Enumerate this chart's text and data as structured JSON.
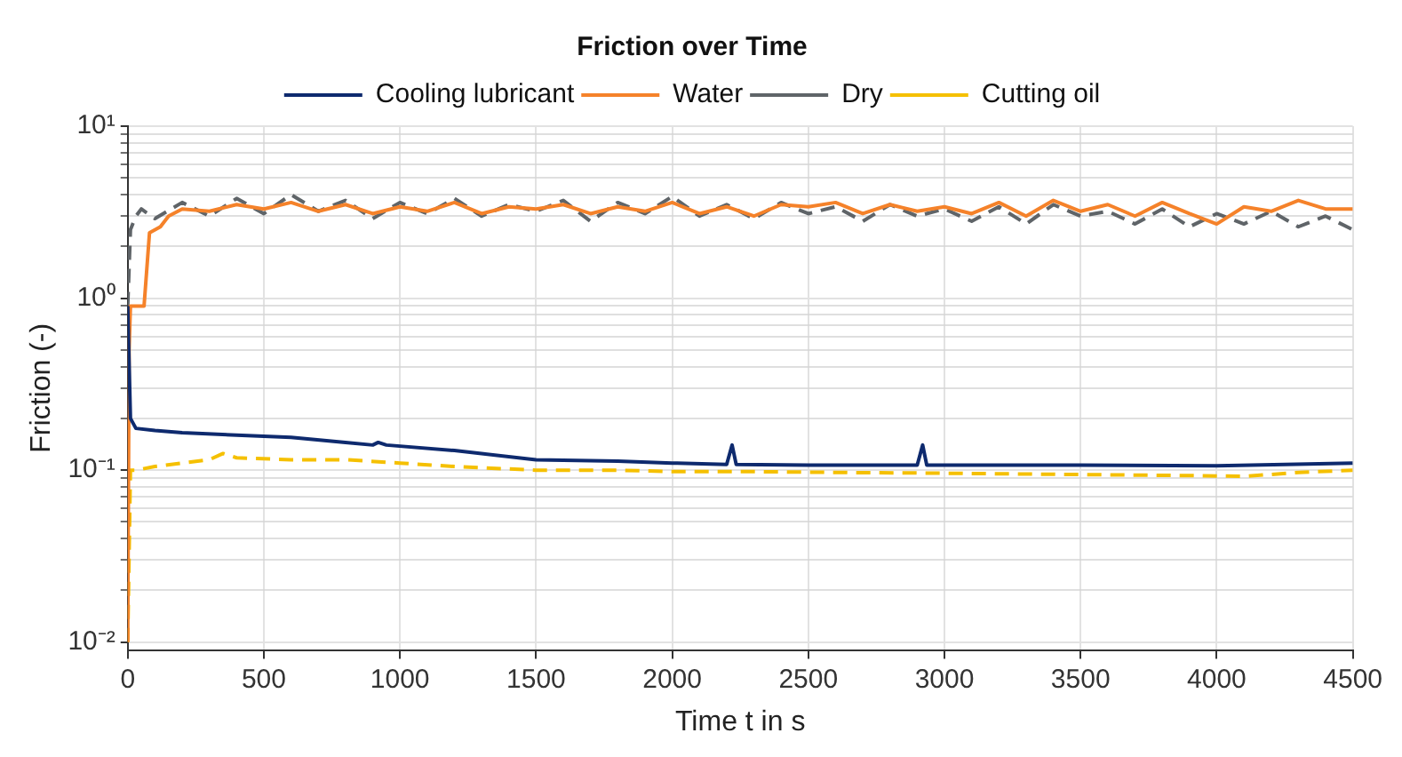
{
  "chart_data": {
    "type": "line",
    "title": "Friction over Time",
    "xlabel": "Time t in s",
    "ylabel": "Friction (-)",
    "xlim": [
      0,
      4500
    ],
    "xticks": [
      0,
      500,
      1000,
      1500,
      2000,
      2500,
      3000,
      3500,
      4000,
      4500
    ],
    "ylim": [
      0.009,
      10
    ],
    "log": "y",
    "yticks": [
      {
        "value": 0.01,
        "label": "10⁻²"
      },
      {
        "value": 0.02,
        "label": null
      },
      {
        "value": 0.03,
        "label": null
      },
      {
        "value": 0.04,
        "label": null
      },
      {
        "value": 0.05,
        "label": null
      },
      {
        "value": 0.06,
        "label": null
      },
      {
        "value": 0.07,
        "label": null
      },
      {
        "value": 0.08,
        "label": null
      },
      {
        "value": 0.09,
        "label": null
      },
      {
        "value": 0.1,
        "label": "10⁻¹"
      },
      {
        "value": 0.2,
        "label": null
      },
      {
        "value": 0.3,
        "label": null
      },
      {
        "value": 0.4,
        "label": null
      },
      {
        "value": 0.5,
        "label": null
      },
      {
        "value": 0.6,
        "label": null
      },
      {
        "value": 0.7,
        "label": null
      },
      {
        "value": 0.8,
        "label": null
      },
      {
        "value": 0.9,
        "label": null
      },
      {
        "value": 1,
        "label": "10⁰"
      },
      {
        "value": 2,
        "label": null
      },
      {
        "value": 3,
        "label": null
      },
      {
        "value": 4,
        "label": null
      },
      {
        "value": 5,
        "label": null
      },
      {
        "value": 6,
        "label": null
      },
      {
        "value": 7,
        "label": null
      },
      {
        "value": 8,
        "label": null
      },
      {
        "value": 9,
        "label": null
      },
      {
        "value": 10,
        "label": "10¹"
      }
    ],
    "grid": true,
    "legend": "top",
    "marker": "none",
    "series": [
      {
        "name": "Cooling lubricant",
        "color": "#0e2a6e",
        "line_style": "solid",
        "x": [
          0,
          10,
          30,
          100,
          200,
          400,
          600,
          800,
          900,
          920,
          950,
          1200,
          1500,
          1800,
          2000,
          2200,
          2220,
          2235,
          2500,
          2900,
          2920,
          2935,
          3500,
          4000,
          4500
        ],
        "values": [
          0.9,
          0.2,
          0.175,
          0.17,
          0.165,
          0.16,
          0.155,
          0.145,
          0.14,
          0.145,
          0.14,
          0.13,
          0.115,
          0.113,
          0.11,
          0.108,
          0.14,
          0.108,
          0.107,
          0.107,
          0.14,
          0.107,
          0.107,
          0.106,
          0.11
        ]
      },
      {
        "name": "Water",
        "color": "#f5822a",
        "line_style": "solid",
        "x": [
          0,
          5,
          10,
          60,
          80,
          120,
          150,
          200,
          300,
          400,
          500,
          600,
          700,
          800,
          900,
          1000,
          1100,
          1200,
          1300,
          1400,
          1500,
          1600,
          1700,
          1800,
          1900,
          2000,
          2100,
          2200,
          2300,
          2400,
          2500,
          2600,
          2700,
          2800,
          2900,
          3000,
          3100,
          3200,
          3300,
          3400,
          3500,
          3600,
          3700,
          3800,
          3900,
          4000,
          4100,
          4200,
          4300,
          4400,
          4500
        ],
        "values": [
          0.01,
          0.5,
          0.9,
          0.9,
          2.4,
          2.6,
          3.0,
          3.3,
          3.2,
          3.5,
          3.3,
          3.6,
          3.2,
          3.5,
          3.1,
          3.4,
          3.2,
          3.6,
          3.1,
          3.4,
          3.3,
          3.5,
          3.1,
          3.4,
          3.2,
          3.6,
          3.1,
          3.4,
          3.0,
          3.5,
          3.4,
          3.6,
          3.1,
          3.5,
          3.2,
          3.4,
          3.1,
          3.6,
          3.0,
          3.7,
          3.2,
          3.5,
          3.0,
          3.6,
          3.1,
          2.7,
          3.4,
          3.2,
          3.7,
          3.3,
          3.3
        ]
      },
      {
        "name": "Dry",
        "color": "#5f6468",
        "line_style": "dashed",
        "x": [
          0,
          10,
          30,
          50,
          100,
          200,
          300,
          400,
          500,
          600,
          700,
          800,
          900,
          1000,
          1100,
          1200,
          1300,
          1400,
          1500,
          1600,
          1700,
          1800,
          1900,
          2000,
          2100,
          2200,
          2300,
          2400,
          2500,
          2600,
          2700,
          2800,
          2900,
          3000,
          3100,
          3200,
          3300,
          3400,
          3500,
          3600,
          3700,
          3800,
          3900,
          4000,
          4100,
          4200,
          4300,
          4400,
          4500
        ],
        "values": [
          0.9,
          2.5,
          3.0,
          3.3,
          2.9,
          3.6,
          3.0,
          3.8,
          3.1,
          4.0,
          3.2,
          3.7,
          2.9,
          3.6,
          3.1,
          3.8,
          3.0,
          3.5,
          3.2,
          3.7,
          2.8,
          3.6,
          3.1,
          3.9,
          3.0,
          3.5,
          2.9,
          3.6,
          3.1,
          3.4,
          2.8,
          3.5,
          3.0,
          3.3,
          2.8,
          3.4,
          2.7,
          3.5,
          3.0,
          3.2,
          2.7,
          3.3,
          2.6,
          3.1,
          2.7,
          3.2,
          2.6,
          3.0,
          2.5
        ]
      },
      {
        "name": "Cutting oil",
        "color": "#f5c000",
        "line_style": "dashed",
        "x": [
          0,
          10,
          30,
          100,
          200,
          300,
          350,
          400,
          600,
          800,
          1000,
          1200,
          1500,
          1800,
          2000,
          2300,
          2600,
          3000,
          3300,
          3600,
          3900,
          4100,
          4300,
          4500
        ],
        "values": [
          0.01,
          0.1,
          0.1,
          0.105,
          0.11,
          0.115,
          0.125,
          0.118,
          0.115,
          0.115,
          0.11,
          0.105,
          0.1,
          0.1,
          0.098,
          0.098,
          0.097,
          0.096,
          0.095,
          0.094,
          0.093,
          0.092,
          0.097,
          0.1
        ]
      }
    ]
  }
}
